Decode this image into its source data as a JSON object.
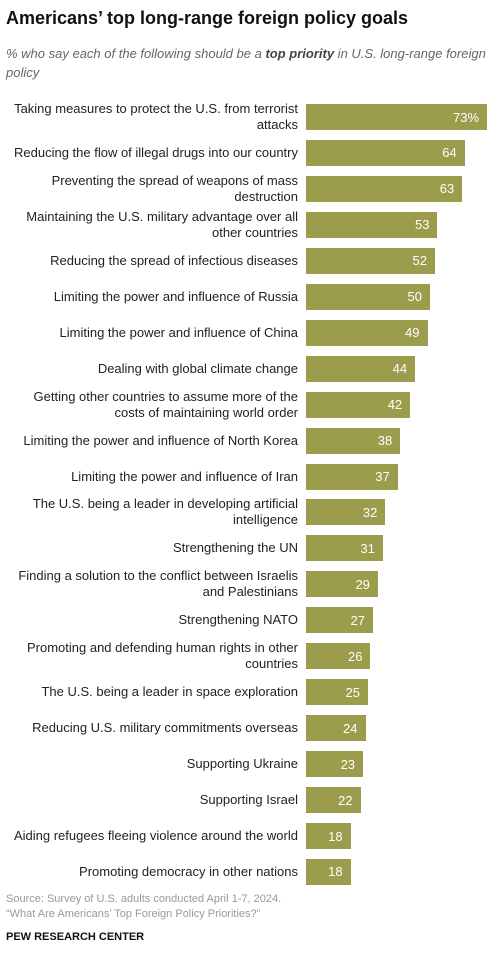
{
  "chart_data": {
    "type": "bar",
    "orientation": "horizontal",
    "title": "Americans’ top long-range foreign policy goals",
    "subtitle": [
      "% who say each of the following should be a ",
      "top priority",
      " in U.S. long-range foreign policy"
    ],
    "categories": [
      "Taking measures to protect the U.S. from terrorist attacks",
      "Reducing the flow of illegal drugs into our country",
      "Preventing the spread of weapons of mass destruction",
      "Maintaining the U.S. military advantage over all other countries",
      "Reducing the spread of infectious diseases",
      "Limiting the power and influence of Russia",
      "Limiting the power and influence of China",
      "Dealing with global climate change",
      "Getting other countries to assume more of the costs of maintaining world order",
      "Limiting the power and influence of North Korea",
      "Limiting the power and influence of Iran",
      "The U.S. being a leader in developing artificial intelligence",
      "Strengthening the UN",
      "Finding a solution to the conflict between Israelis and Palestinians",
      "Strengthening NATO",
      "Promoting and defending human rights in other countries",
      "The U.S. being a leader in space exploration",
      "Reducing U.S. military commitments overseas",
      "Supporting Ukraine",
      "Supporting Israel",
      "Aiding refugees fleeing violence around the world",
      "Promoting democracy in other nations"
    ],
    "values": [
      73,
      64,
      63,
      53,
      52,
      50,
      49,
      44,
      42,
      38,
      37,
      32,
      31,
      29,
      27,
      26,
      25,
      24,
      23,
      22,
      18,
      18
    ],
    "value_labels": [
      "73%",
      "64",
      "63",
      "53",
      "52",
      "50",
      "49",
      "44",
      "42",
      "38",
      "37",
      "32",
      "31",
      "29",
      "27",
      "26",
      "25",
      "24",
      "23",
      "22",
      "18",
      "18"
    ],
    "color": "#9c9d4c",
    "source": [
      "Source: Survey of U.S. adults conducted April 1-7, 2024.",
      "“What Are Americans’ Top Foreign Policy Priorities?”"
    ],
    "credit": "PEW RESEARCH CENTER"
  }
}
